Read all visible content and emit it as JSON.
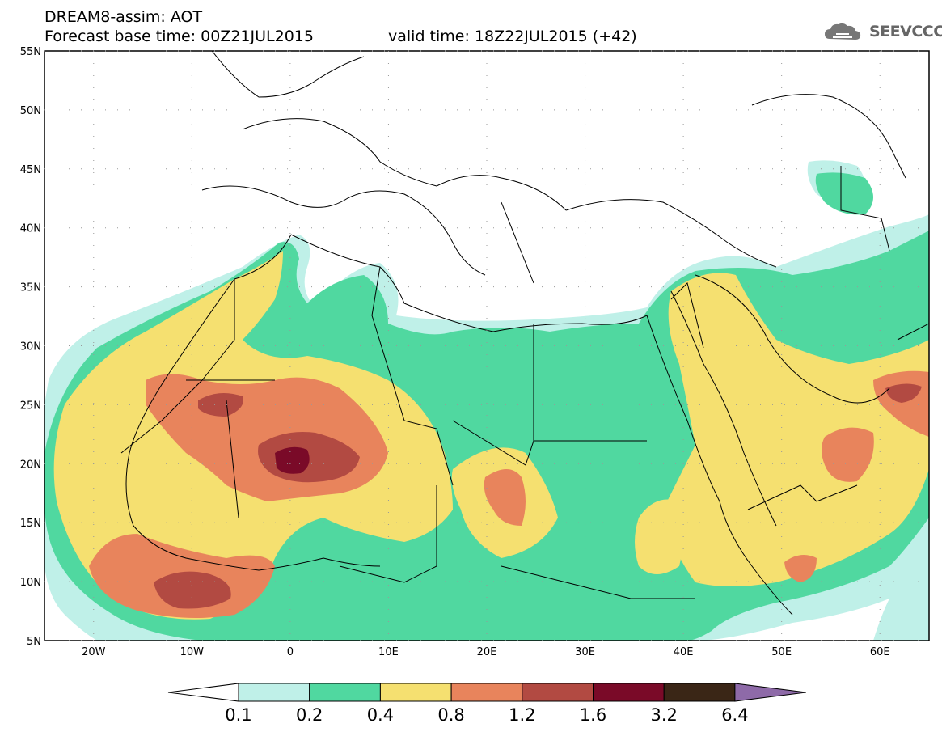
{
  "header": {
    "title": "DREAM8-assim: AOT",
    "base_time": "Forecast base time: 00Z21JUL2015",
    "valid_time": "valid time: 18Z22JUL2015 (+42)",
    "logo_text": "SEEVCCC"
  },
  "axes": {
    "lat_labels": [
      "55N",
      "50N",
      "45N",
      "40N",
      "35N",
      "30N",
      "25N",
      "20N",
      "15N",
      "10N",
      "5N"
    ],
    "lat_values": [
      55,
      50,
      45,
      40,
      35,
      30,
      25,
      20,
      15,
      10,
      5
    ],
    "lon_labels": [
      "20W",
      "10W",
      "0",
      "10E",
      "20E",
      "30E",
      "40E",
      "50E",
      "60E"
    ],
    "lon_values": [
      -20,
      -10,
      0,
      10,
      20,
      30,
      40,
      50,
      60
    ],
    "lon_range": [
      -25,
      65
    ],
    "lat_range": [
      5,
      55
    ]
  },
  "colorbar": {
    "labels": [
      "0.1",
      "0.2",
      "0.4",
      "0.8",
      "1.2",
      "1.6",
      "3.2",
      "6.4"
    ],
    "colors": [
      "#bff0e8",
      "#50d8a0",
      "#f5e070",
      "#e8845c",
      "#b24a42",
      "#7a0a28",
      "#3a2616",
      "#8e6aa8"
    ]
  },
  "colors": {
    "land_border": "#000000",
    "dotted_grid": "#999999"
  }
}
